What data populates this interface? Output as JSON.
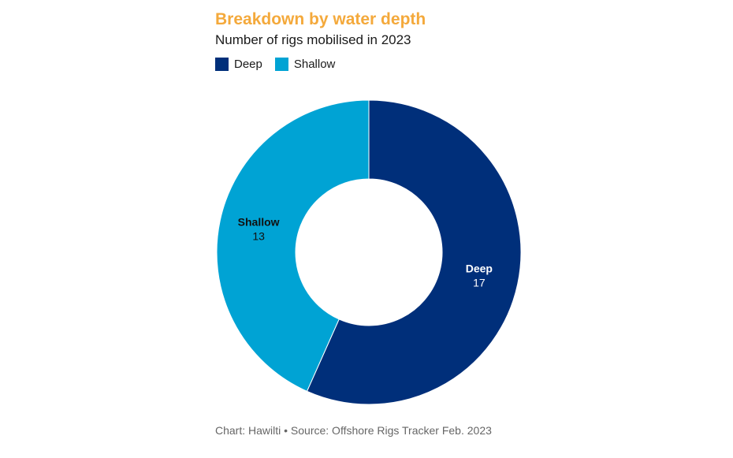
{
  "chart_data": {
    "type": "pie",
    "variant": "donut",
    "title": "Breakdown by water depth",
    "subtitle": "Number of rigs mobilised in 2023",
    "categories": [
      "Deep",
      "Shallow"
    ],
    "values": [
      17,
      13
    ],
    "colors": [
      "#002f7a",
      "#00a3d4"
    ],
    "label_colors": [
      "#ffffff",
      "#111111"
    ],
    "legend": {
      "placement": "top-left",
      "entries": [
        "Deep",
        "Shallow"
      ]
    },
    "source": "Chart: Hawilti • Source: Offshore Rigs Tracker Feb. 2023"
  }
}
